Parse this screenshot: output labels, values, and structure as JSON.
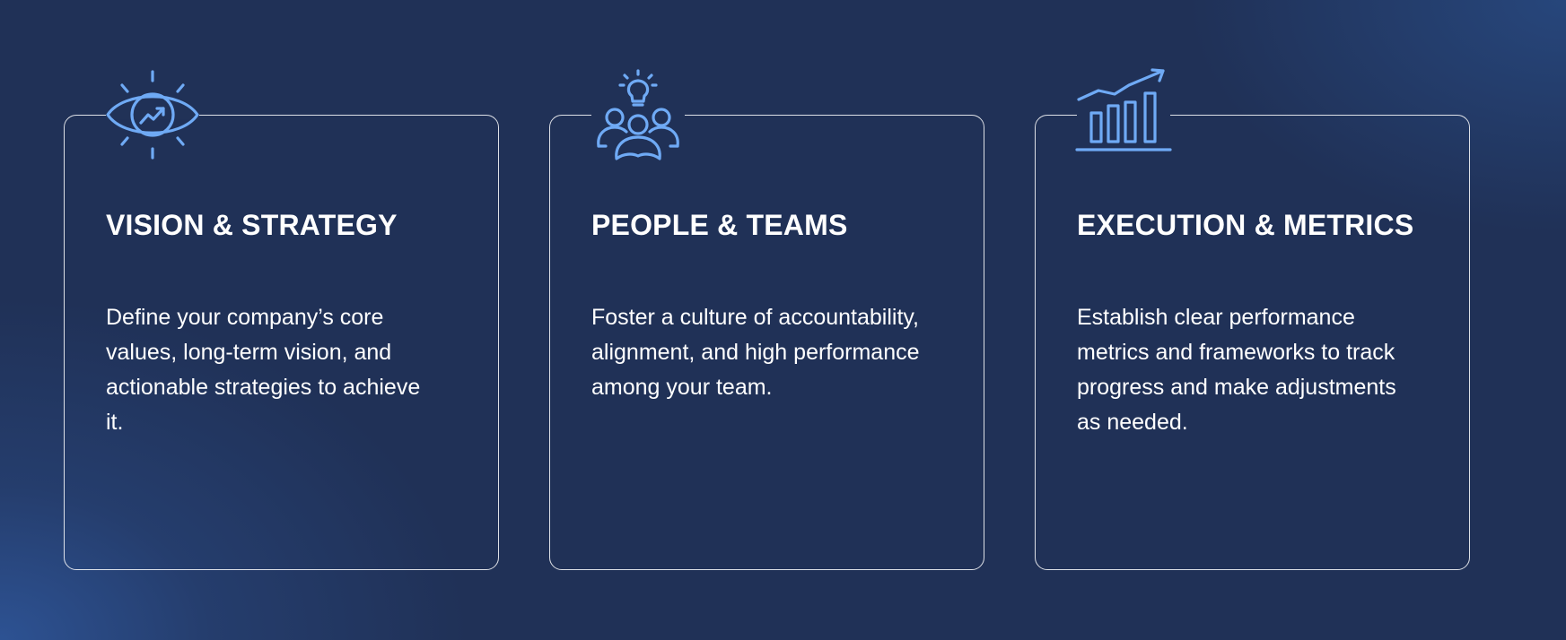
{
  "colors": {
    "background": "#203157",
    "accent_glow": "#2E5496",
    "card_border": "#FFFFFF",
    "icon": "#6FAAF5",
    "text": "#FFFFFF"
  },
  "cards": [
    {
      "icon": "eye-trend-icon",
      "title": "VISION & STRATEGY",
      "description": "Define your company’s core values, long-term vision, and actionable strategies to achieve it."
    },
    {
      "icon": "team-lightbulb-icon",
      "title": "PEOPLE & TEAMS",
      "description": "Foster a culture of accountability, alignment, and high performance among your team."
    },
    {
      "icon": "bar-chart-growth-icon",
      "title": "EXECUTION & METRICS",
      "description": "Establish clear performance metrics and frameworks to track progress and make adjustments as needed."
    }
  ]
}
